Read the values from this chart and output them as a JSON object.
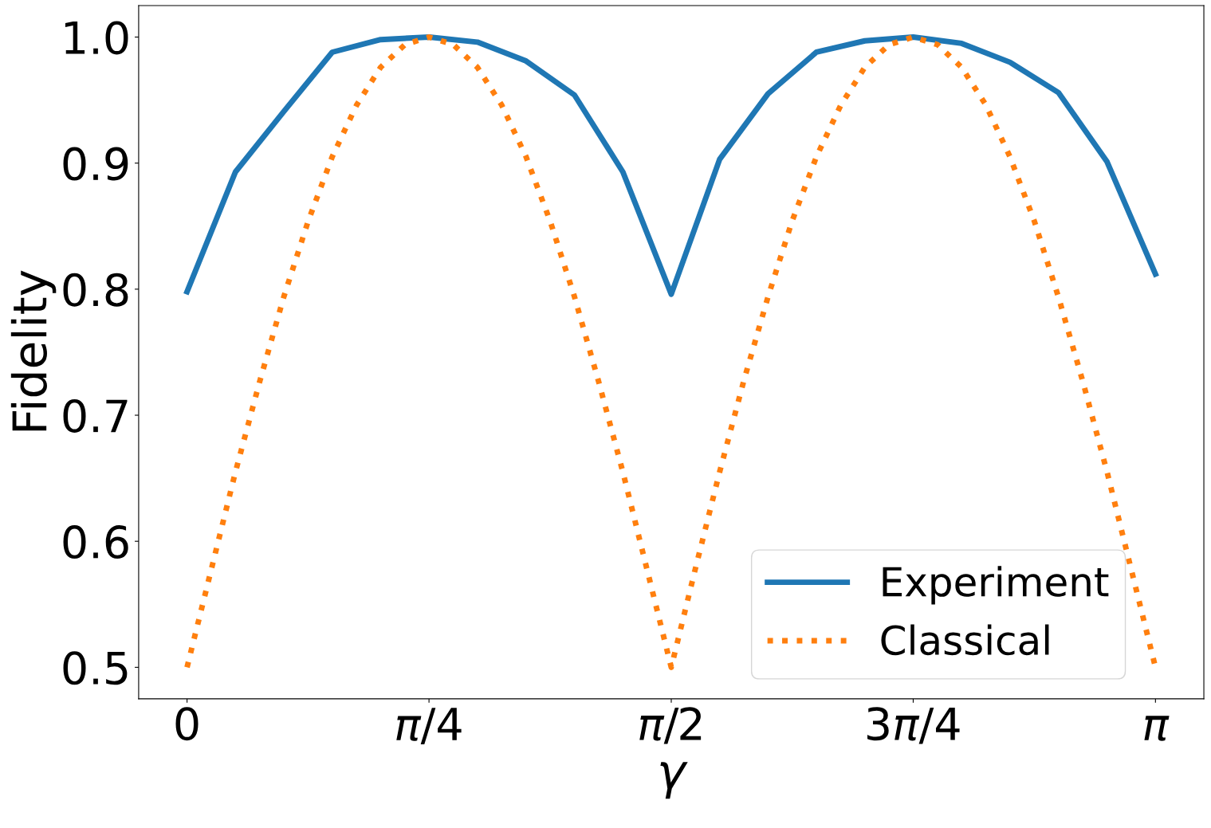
{
  "chart_data": {
    "type": "line",
    "xlabel": "γ",
    "ylabel": "Fidelity",
    "xlim": [
      -0.157,
      3.299
    ],
    "xticks": [
      0,
      {
        "value": 0.785,
        "label": "π/4"
      },
      {
        "value": 1.571,
        "label": "π/2"
      },
      {
        "value": 2.356,
        "label": "3π/4"
      },
      {
        "value": 3.142,
        "label": "π"
      }
    ],
    "ylim": [
      0.475,
      1.025
    ],
    "yticks": [
      0.5,
      0.6,
      0.7,
      0.8,
      0.9,
      {
        "value": 1.0,
        "label": "1.0"
      }
    ],
    "legend": "bottom right",
    "series": [
      {
        "name": "Experiment",
        "color": "#1f77b4",
        "line_style": "solid",
        "x": [
          0,
          0.157,
          0.314,
          0.471,
          0.628,
          0.785,
          0.942,
          1.1,
          1.257,
          1.414,
          1.571,
          1.728,
          1.885,
          2.042,
          2.199,
          2.356,
          2.513,
          2.67,
          2.827,
          2.985,
          3.142
        ],
        "values": [
          0.798,
          0.893,
          0.941,
          0.988,
          0.998,
          1.0,
          0.996,
          0.981,
          0.954,
          0.893,
          0.796,
          0.903,
          0.955,
          0.988,
          0.997,
          1.0,
          0.995,
          0.98,
          0.956,
          0.901,
          0.812
        ]
      },
      {
        "name": "Classical",
        "color": "#ff7f0e",
        "line_style": "dotted",
        "x": [
          0,
          0.079,
          0.157,
          0.236,
          0.314,
          0.393,
          0.471,
          0.55,
          0.628,
          0.707,
          0.785,
          0.864,
          0.942,
          1.021,
          1.1,
          1.178,
          1.257,
          1.335,
          1.414,
          1.492,
          1.571,
          1.649,
          1.728,
          1.806,
          1.885,
          1.963,
          2.042,
          2.121,
          2.199,
          2.278,
          2.356,
          2.435,
          2.513,
          2.592,
          2.67,
          2.749,
          2.827,
          2.906,
          2.985,
          3.063,
          3.142
        ],
        "values": [
          0.5,
          0.578,
          0.655,
          0.727,
          0.794,
          0.854,
          0.905,
          0.946,
          0.976,
          0.994,
          1.0,
          0.994,
          0.976,
          0.946,
          0.905,
          0.854,
          0.794,
          0.727,
          0.655,
          0.578,
          0.5,
          0.578,
          0.655,
          0.727,
          0.794,
          0.854,
          0.905,
          0.946,
          0.976,
          0.994,
          1.0,
          0.994,
          0.976,
          0.946,
          0.905,
          0.854,
          0.794,
          0.727,
          0.655,
          0.578,
          0.5
        ]
      }
    ]
  }
}
